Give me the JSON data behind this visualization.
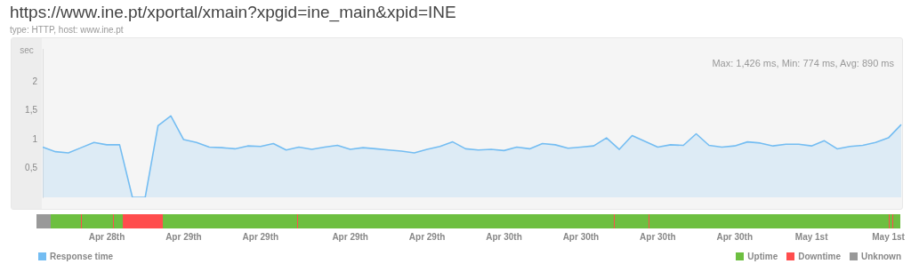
{
  "chart_data": {
    "type": "area",
    "title": "https://www.ine.pt/xportal/xmain?xpgid=ine_main&xpid=INE",
    "subtitle": "type: HTTP, host: www.ine.pt",
    "ylabel": "sec",
    "annotations": [
      "Max: 1,426 ms, Min: 774 ms, Avg: 890 ms",
      "Uptime",
      "Downtime",
      "Unknown"
    ],
    "categories": [
      null,
      null,
      null,
      null,
      null,
      "Apr 28th",
      null,
      null,
      null,
      null,
      null,
      "Apr 29th",
      null,
      null,
      null,
      null,
      null,
      "Apr 29th",
      null,
      null,
      null,
      null,
      null,
      null,
      "Apr 29th",
      null,
      null,
      null,
      null,
      null,
      "Apr 29th",
      null,
      null,
      null,
      null,
      null,
      "Apr 30th",
      null,
      null,
      null,
      null,
      null,
      "Apr 30th",
      null,
      null,
      null,
      null,
      null,
      "Apr 30th",
      null,
      null,
      null,
      null,
      null,
      "Apr 30th",
      null,
      null,
      null,
      null,
      null,
      "May 1st",
      null,
      null,
      null,
      null,
      null,
      "May 1st",
      null
    ],
    "series": [
      {
        "name": "Response time",
        "color": "#74bdf2",
        "values": [
          0.87,
          0.79,
          0.77,
          0.86,
          0.95,
          0.91,
          0.91,
          0,
          0,
          1.24,
          1.41,
          1.0,
          0.95,
          0.87,
          0.86,
          0.84,
          0.89,
          0.88,
          0.93,
          0.82,
          0.87,
          0.83,
          0.87,
          0.9,
          0.83,
          0.86,
          0.84,
          0.82,
          0.8,
          0.77,
          0.83,
          0.88,
          0.96,
          0.84,
          0.82,
          0.83,
          0.81,
          0.87,
          0.84,
          0.93,
          0.91,
          0.85,
          0.87,
          0.89,
          1.03,
          0.83,
          1.07,
          0.97,
          0.87,
          0.91,
          0.9,
          1.1,
          0.9,
          0.87,
          0.89,
          0.96,
          0.94,
          0.89,
          0.92,
          0.92,
          0.89,
          0.98,
          0.84,
          0.88,
          0.9,
          0.95,
          1.03,
          1.26
        ]
      }
    ],
    "ylim": [
      0,
      2.57
    ],
    "yticks": [
      {
        "value": 0.5,
        "label": "0,5"
      },
      1,
      {
        "value": 1.5,
        "label": "1,5"
      },
      2
    ],
    "grid": false,
    "legend": "bottom left"
  }
}
